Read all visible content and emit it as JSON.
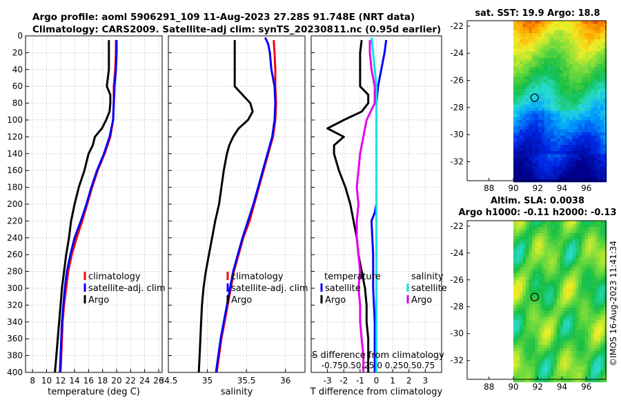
{
  "title": {
    "line1": "Argo profile: aoml 5906291_109 11-Aug-2023 27.28S 91.748E (NRT data)",
    "line2": "Climatology: CARS2009. Satellite-adj clim: synTS_20230811.nc (0.95d earlier)"
  },
  "colors": {
    "climatology": "#ff0000",
    "satellite": "#0000ff",
    "argo": "#000000",
    "cyan": "#00e5e5",
    "magenta": "#e600e6"
  },
  "chart_data": [
    {
      "type": "line",
      "id": "temperature",
      "xlabel": "temperature (deg C)",
      "xlim": [
        7,
        26.5
      ],
      "xticks": [
        "8",
        "10",
        "12",
        "14",
        "16",
        "18",
        "20",
        "22",
        "24",
        "26"
      ],
      "xtick_values": [
        8,
        10,
        12,
        14,
        16,
        18,
        20,
        22,
        24,
        26
      ],
      "ylim": [
        0,
        400
      ],
      "yticks": [
        "0",
        "20",
        "40",
        "60",
        "80",
        "100",
        "120",
        "140",
        "160",
        "180",
        "200",
        "220",
        "240",
        "260",
        "280",
        "300",
        "320",
        "340",
        "360",
        "380",
        "400"
      ],
      "y_reversed": true,
      "legend": [
        "climatology",
        "satellite-adj. clim",
        "Argo"
      ],
      "series": [
        {
          "name": "climatology",
          "color": "#ff0000",
          "depth": [
            5,
            20,
            40,
            60,
            80,
            100,
            120,
            140,
            160,
            180,
            200,
            220,
            240,
            260,
            280,
            300,
            320,
            340,
            360,
            380,
            400
          ],
          "values": [
            19.9,
            19.9,
            19.8,
            19.6,
            19.6,
            19.5,
            19.1,
            18.3,
            17.3,
            16.5,
            15.8,
            15.1,
            14.3,
            13.6,
            13.1,
            12.8,
            12.5,
            12.3,
            12.2,
            12.1,
            12.0
          ]
        },
        {
          "name": "satellite-adj. clim",
          "color": "#0000ff",
          "depth": [
            5,
            20,
            40,
            60,
            80,
            100,
            120,
            140,
            160,
            180,
            200,
            220,
            240,
            260,
            280,
            300,
            320,
            340,
            360,
            380,
            400
          ],
          "values": [
            20.0,
            20.0,
            19.9,
            19.7,
            19.6,
            19.5,
            19.0,
            18.2,
            17.2,
            16.4,
            15.7,
            14.9,
            14.0,
            13.4,
            12.9,
            12.6,
            12.4,
            12.2,
            12.1,
            12.0,
            11.9
          ]
        },
        {
          "name": "Argo",
          "color": "#000000",
          "depth": [
            5,
            20,
            40,
            60,
            70,
            80,
            90,
            100,
            110,
            120,
            130,
            140,
            160,
            180,
            200,
            220,
            240,
            260,
            280,
            300,
            320,
            340,
            360,
            380,
            400
          ],
          "values": [
            18.9,
            18.9,
            18.9,
            18.6,
            19.1,
            19.1,
            19.0,
            18.5,
            17.9,
            16.9,
            16.6,
            16.0,
            15.4,
            14.6,
            14.0,
            13.5,
            13.2,
            12.8,
            12.5,
            12.2,
            12.0,
            11.8,
            11.6,
            11.4,
            11.2
          ]
        }
      ]
    },
    {
      "type": "line",
      "id": "salinity",
      "xlabel": "salinity",
      "xlim": [
        34.5,
        36.25
      ],
      "xticks": [
        "34.5",
        "35",
        "35.5",
        "36"
      ],
      "xtick_values": [
        34.5,
        35,
        35.5,
        36
      ],
      "ylim": [
        0,
        400
      ],
      "y_reversed": true,
      "legend": [
        "climatology",
        "satellite-adj. clim",
        "Argo"
      ],
      "series": [
        {
          "name": "climatology",
          "color": "#ff0000",
          "depth": [
            5,
            20,
            40,
            60,
            80,
            100,
            120,
            140,
            160,
            180,
            200,
            220,
            240,
            260,
            280,
            300,
            320,
            340,
            360,
            380,
            400
          ],
          "values": [
            35.85,
            35.86,
            35.87,
            35.87,
            35.88,
            35.87,
            35.84,
            35.78,
            35.72,
            35.66,
            35.6,
            35.54,
            35.46,
            35.4,
            35.34,
            35.3,
            35.26,
            35.22,
            35.18,
            35.15,
            35.12
          ]
        },
        {
          "name": "satellite-adj. clim",
          "color": "#0000ff",
          "depth": [
            2,
            10,
            20,
            40,
            60,
            80,
            100,
            120,
            140,
            160,
            180,
            200,
            220,
            240,
            260,
            280,
            300,
            320,
            340,
            360,
            380,
            400
          ],
          "values": [
            35.74,
            35.78,
            35.8,
            35.82,
            35.86,
            35.87,
            35.86,
            35.83,
            35.77,
            35.71,
            35.65,
            35.59,
            35.52,
            35.45,
            35.39,
            35.33,
            35.29,
            35.25,
            35.21,
            35.17,
            35.14,
            35.11
          ]
        },
        {
          "name": "Argo",
          "color": "#000000",
          "depth": [
            5,
            20,
            40,
            60,
            70,
            80,
            90,
            100,
            110,
            120,
            130,
            140,
            160,
            180,
            200,
            220,
            240,
            260,
            280,
            300,
            320,
            340,
            360,
            380,
            400
          ],
          "values": [
            35.35,
            35.35,
            35.35,
            35.35,
            35.45,
            35.55,
            35.58,
            35.52,
            35.4,
            35.33,
            35.28,
            35.25,
            35.21,
            35.18,
            35.15,
            35.1,
            35.06,
            35.02,
            34.98,
            34.95,
            34.93,
            34.92,
            34.91,
            34.9,
            34.89
          ]
        }
      ]
    },
    {
      "type": "line",
      "id": "difference",
      "xlabel": "T difference from climatology",
      "xlim": [
        -4,
        4
      ],
      "xticks": [
        "-3",
        "-2",
        "-1",
        "0",
        "1",
        "2",
        "3"
      ],
      "xtick_values": [
        -3,
        -2,
        -1,
        0,
        1,
        2,
        3
      ],
      "top_label": "S difference from climatology",
      "top_ticks": "-0.750.50.25  0  0.250.50.75",
      "ylim": [
        0,
        400
      ],
      "y_reversed": true,
      "legend_temperature_title": "temperature",
      "legend_salinity_title": "salinity",
      "legend_temperature": [
        "satellite",
        "Argo"
      ],
      "legend_salinity": [
        "satellite",
        "Argo"
      ],
      "series": [
        {
          "name": "T satellite",
          "color": "#0000ff",
          "depth": [
            5,
            20,
            40,
            60,
            80,
            100,
            120,
            140,
            160,
            180,
            200,
            210,
            220,
            260,
            300,
            340,
            380,
            400
          ],
          "values": [
            0.6,
            0.5,
            0.3,
            0.1,
            0.0,
            0.0,
            0.0,
            0.0,
            0.0,
            0.0,
            0.0,
            -0.1,
            -0.3,
            -0.2,
            -0.2,
            -0.1,
            -0.1,
            -0.1
          ]
        },
        {
          "name": "T Argo",
          "color": "#000000",
          "depth": [
            5,
            20,
            40,
            60,
            70,
            80,
            90,
            100,
            110,
            120,
            130,
            140,
            160,
            180,
            200,
            220,
            240,
            260,
            280,
            300,
            320,
            340,
            360,
            380,
            400
          ],
          "values": [
            -0.9,
            -1.0,
            -1.0,
            -1.0,
            -0.5,
            -0.5,
            -0.9,
            -2.0,
            -3.0,
            -2.0,
            -2.6,
            -2.6,
            -2.3,
            -1.9,
            -1.6,
            -1.4,
            -1.2,
            -1.1,
            -0.9,
            -0.7,
            -0.6,
            -0.6,
            -0.5,
            -0.5,
            -0.5
          ]
        },
        {
          "name": "S satellite",
          "color": "#00e5e5",
          "depth": [
            2,
            20,
            40,
            60,
            80,
            120,
            200,
            300,
            400
          ],
          "values": [
            -0.3,
            -0.2,
            -0.1,
            0.0,
            0.0,
            0.0,
            0.0,
            0.0,
            0.0
          ]
        },
        {
          "name": "S Argo",
          "color": "#e600e6",
          "depth": [
            5,
            20,
            40,
            60,
            80,
            100,
            120,
            140,
            160,
            180,
            200,
            220,
            240,
            260,
            280,
            300,
            320,
            340,
            360,
            380,
            400
          ],
          "values": [
            -0.4,
            -0.4,
            -0.3,
            -0.1,
            -0.1,
            -0.6,
            -0.8,
            -1.0,
            -1.1,
            -1.2,
            -1.1,
            -1.2,
            -1.2,
            -1.1,
            -1.0,
            -1.1,
            -1.0,
            -1.0,
            -0.9,
            -0.8,
            -0.8
          ]
        }
      ]
    },
    {
      "type": "heatmap",
      "id": "sst_map",
      "title": "sat. SST: 19.9 Argo: 18.8",
      "xticks": [
        "88",
        "90",
        "92",
        "94",
        "96"
      ],
      "xtick_values": [
        88,
        90,
        92,
        94,
        96
      ],
      "yticks": [
        "-22",
        "-24",
        "-26",
        "-28",
        "-30",
        "-32"
      ],
      "ytick_values": [
        -22,
        -24,
        -26,
        -28,
        -30,
        -32
      ],
      "xlim": [
        86.2,
        97.6
      ],
      "ylim": [
        -33.4,
        -21.6
      ],
      "argo_position": [
        91.748,
        -27.28
      ]
    },
    {
      "type": "heatmap",
      "id": "sla_map",
      "title_line1": "Altim. SLA: 0.0038",
      "title_line2": "Argo h1000: -0.11 h2000: -0.13",
      "xticks": [
        "88",
        "90",
        "92",
        "94",
        "96"
      ],
      "xtick_values": [
        88,
        90,
        92,
        94,
        96
      ],
      "yticks": [
        "-22",
        "-24",
        "-26",
        "-28",
        "-30",
        "-32"
      ],
      "ytick_values": [
        -22,
        -24,
        -26,
        -28,
        -30,
        -32
      ],
      "xlim": [
        86.2,
        97.6
      ],
      "ylim": [
        -33.4,
        -21.6
      ],
      "argo_position": [
        91.748,
        -27.28
      ]
    }
  ],
  "watermark": "©IMOS 16-Aug-2023 11:41:34"
}
